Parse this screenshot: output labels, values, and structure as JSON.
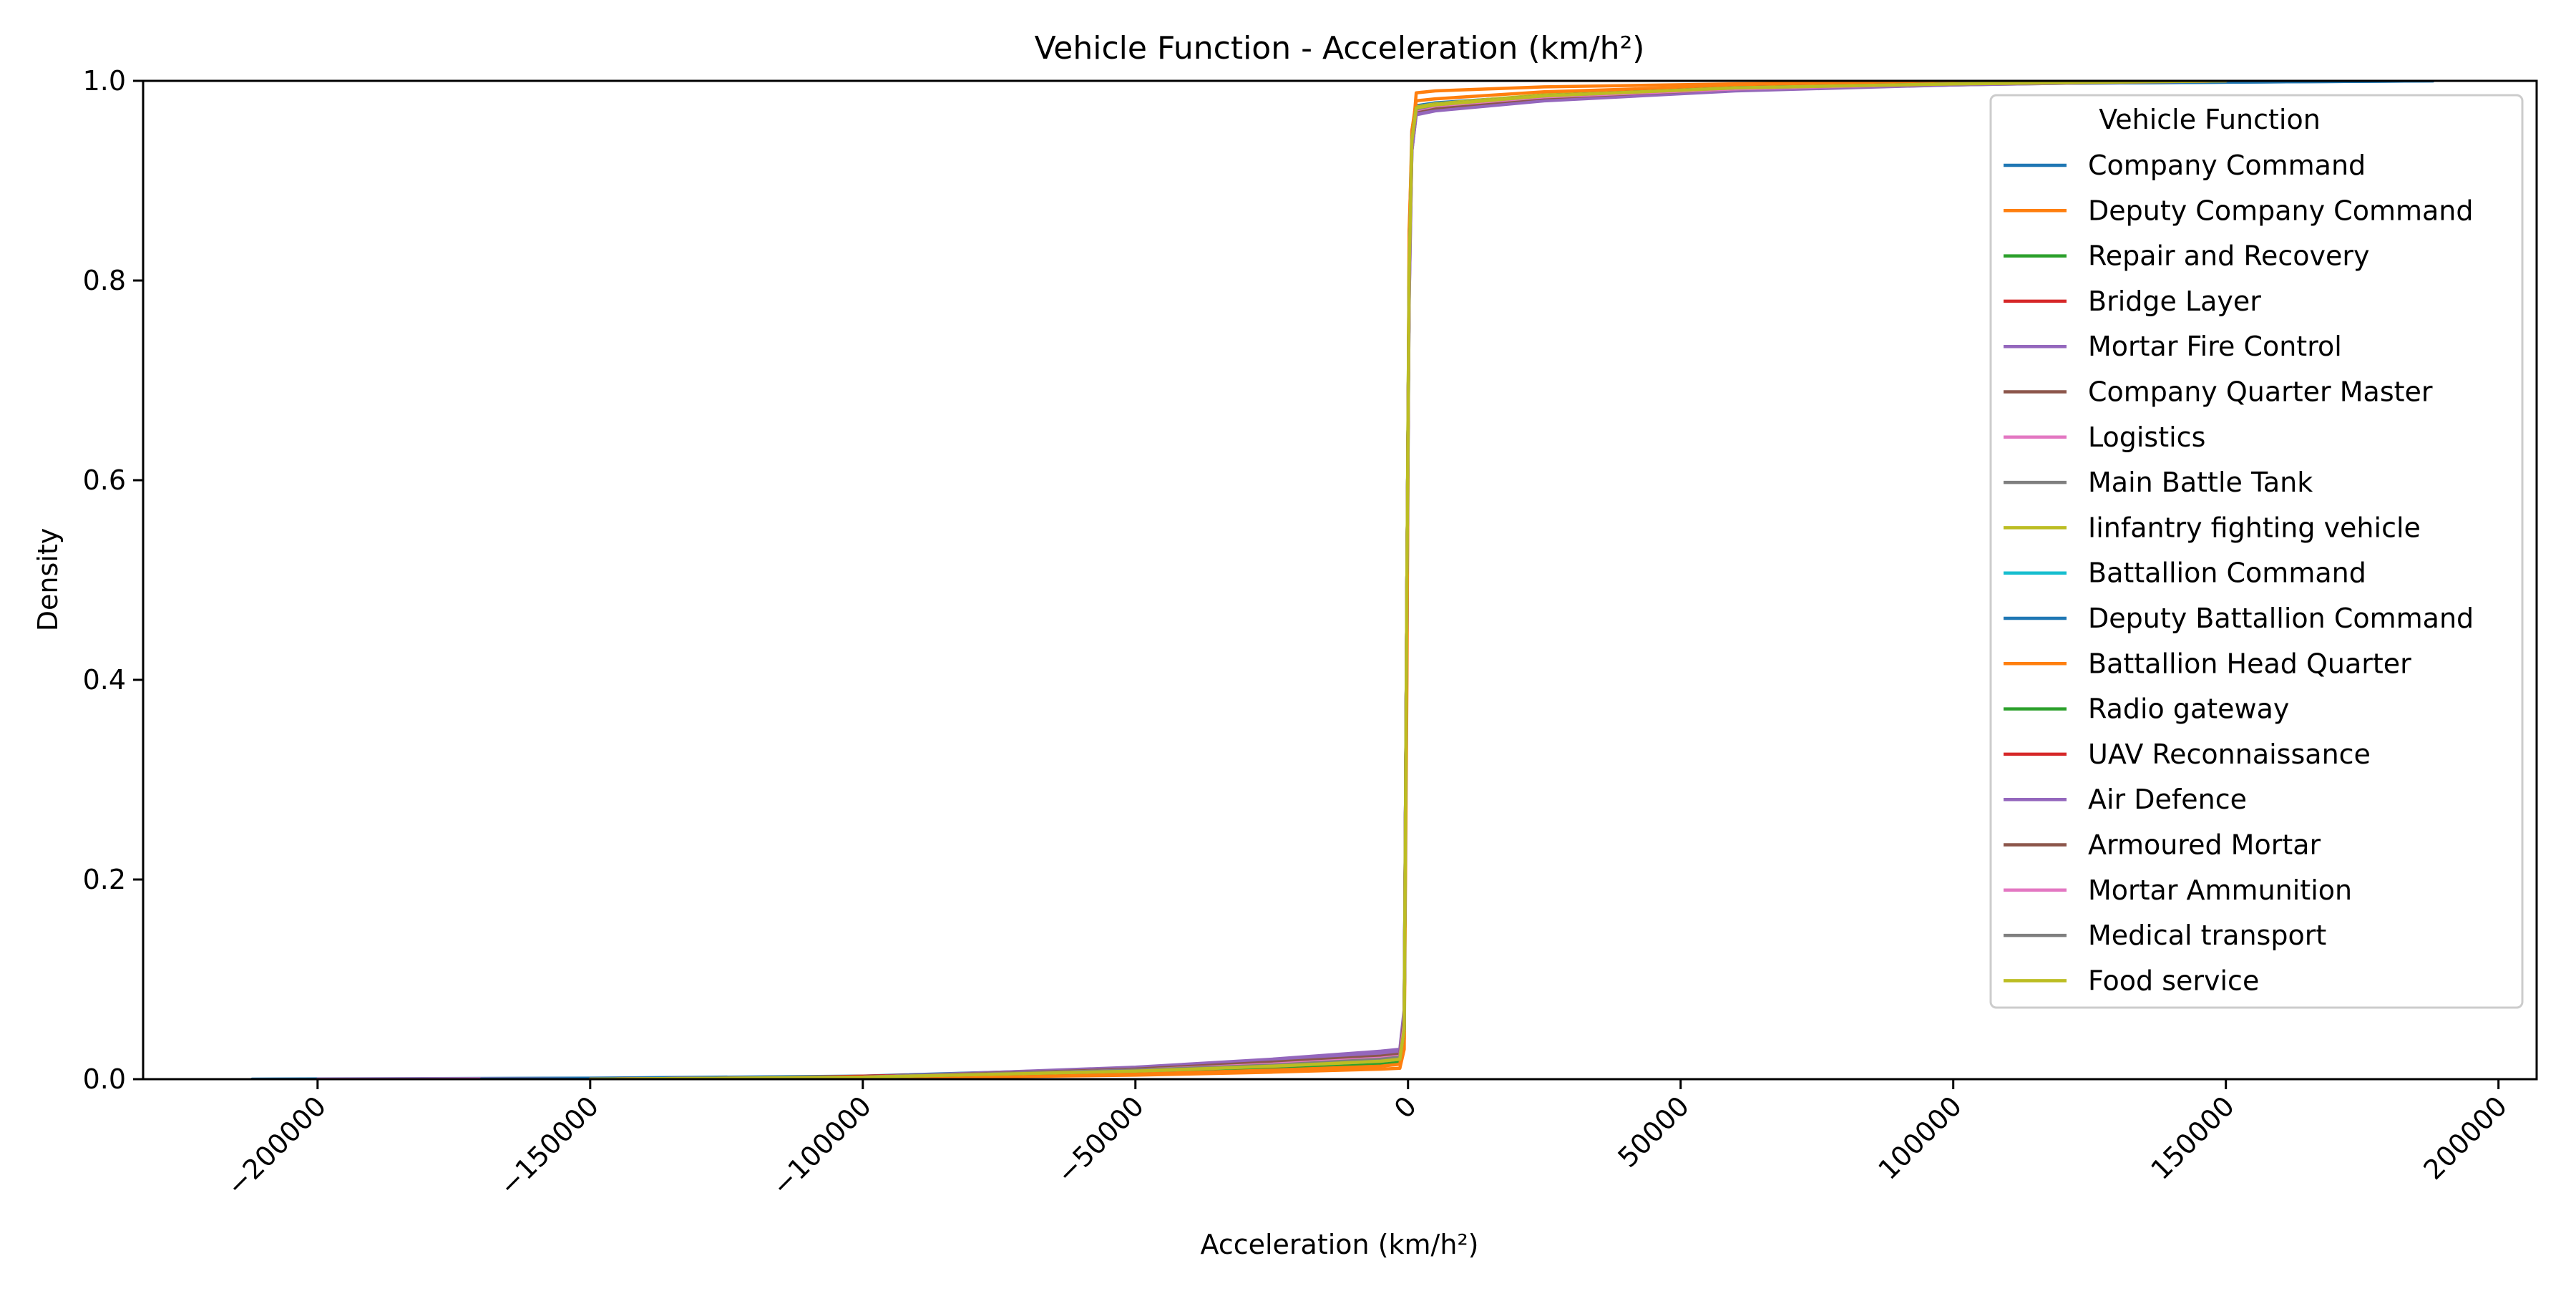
{
  "chart_data": {
    "type": "line",
    "title": "Vehicle Function - Acceleration (km/h²)",
    "xlabel": "Acceleration (km/h²)",
    "ylabel": "Density",
    "xlim": [
      -232000,
      207000
    ],
    "ylim": [
      0,
      1.0
    ],
    "x_ticks": [
      -200000,
      -150000,
      -100000,
      -50000,
      0,
      50000,
      100000,
      150000,
      200000
    ],
    "x_tick_labels": [
      "−200000",
      "−150000",
      "−100000",
      "−50000",
      "0",
      "50000",
      "100000",
      "150000",
      "200000"
    ],
    "y_ticks": [
      0.0,
      0.2,
      0.4,
      0.6,
      0.8,
      1.0
    ],
    "y_tick_labels": [
      "0.0",
      "0.2",
      "0.4",
      "0.6",
      "0.8",
      "1.0"
    ],
    "grid": false,
    "legend": {
      "title": "Vehicle Function",
      "position": "top-right"
    },
    "series": [
      {
        "name": "Company Command",
        "color": "#1f77b4",
        "x": [
          -212000,
          -150000,
          -100000,
          -50000,
          -25000,
          -5000,
          -1500,
          -700,
          -200,
          200,
          700,
          1500,
          5000,
          25000,
          60000,
          100000,
          188000
        ],
        "y": [
          0,
          0.001,
          0.003,
          0.011,
          0.017,
          0.024,
          0.026,
          0.06,
          0.45,
          0.8,
          0.95,
          0.975,
          0.978,
          0.985,
          0.992,
          0.997,
          1.0
        ]
      },
      {
        "name": "Deputy Company Command",
        "color": "#ff7f0e",
        "x": [
          -160000,
          -100000,
          -50000,
          -25000,
          -5000,
          -1500,
          -700,
          -200,
          200,
          700,
          1500,
          5000,
          25000,
          60000,
          100000,
          160000
        ],
        "y": [
          0,
          0.001,
          0.004,
          0.007,
          0.01,
          0.011,
          0.03,
          0.4,
          0.85,
          0.935,
          0.988,
          0.99,
          0.994,
          0.997,
          0.999,
          1.0
        ]
      },
      {
        "name": "Repair and Recovery",
        "color": "#2ca02c",
        "x": [
          -150000,
          -100000,
          -50000,
          -25000,
          -5000,
          -1500,
          -700,
          -200,
          200,
          700,
          1500,
          5000,
          25000,
          60000,
          100000,
          150000
        ],
        "y": [
          0,
          0.002,
          0.008,
          0.012,
          0.016,
          0.018,
          0.05,
          0.5,
          0.82,
          0.94,
          0.972,
          0.976,
          0.984,
          0.992,
          0.997,
          1.0
        ]
      },
      {
        "name": "Bridge Layer",
        "color": "#d62728",
        "x": [
          -180000,
          -120000,
          -60000,
          -25000,
          -5000,
          -1500,
          -700,
          -200,
          200,
          700,
          1500,
          5000,
          25000,
          60000,
          100000,
          150000
        ],
        "y": [
          0,
          0.001,
          0.007,
          0.013,
          0.018,
          0.02,
          0.05,
          0.5,
          0.8,
          0.94,
          0.972,
          0.975,
          0.985,
          0.993,
          0.997,
          1.0
        ]
      },
      {
        "name": "Mortar Fire Control",
        "color": "#9467bd",
        "x": [
          -140000,
          -100000,
          -50000,
          -25000,
          -5000,
          -1500,
          -700,
          -200,
          200,
          700,
          1500,
          5000,
          25000,
          60000,
          100000,
          140000
        ],
        "y": [
          0,
          0.002,
          0.012,
          0.02,
          0.028,
          0.03,
          0.07,
          0.5,
          0.78,
          0.93,
          0.966,
          0.97,
          0.98,
          0.99,
          0.996,
          1.0
        ]
      },
      {
        "name": "Company Quarter Master",
        "color": "#8c564b",
        "x": [
          -150000,
          -100000,
          -50000,
          -25000,
          -5000,
          -1500,
          -700,
          -200,
          200,
          700,
          1500,
          5000,
          25000,
          60000,
          100000,
          150000
        ],
        "y": [
          0,
          0.002,
          0.01,
          0.016,
          0.022,
          0.024,
          0.06,
          0.5,
          0.8,
          0.94,
          0.97,
          0.974,
          0.983,
          0.992,
          0.997,
          1.0
        ]
      },
      {
        "name": "Logistics",
        "color": "#e377c2",
        "x": [
          -200000,
          -150000,
          -100000,
          -50000,
          -25000,
          -5000,
          -1500,
          -700,
          -200,
          200,
          700,
          1500,
          5000,
          25000,
          60000,
          100000,
          150000
        ],
        "y": [
          0,
          0.0005,
          0.002,
          0.009,
          0.014,
          0.02,
          0.022,
          0.055,
          0.5,
          0.8,
          0.94,
          0.972,
          0.976,
          0.985,
          0.993,
          0.997,
          1.0
        ]
      },
      {
        "name": "Main Battle Tank",
        "color": "#7f7f7f",
        "x": [
          -150000,
          -100000,
          -50000,
          -25000,
          -5000,
          -1500,
          -700,
          -200,
          200,
          700,
          1500,
          5000,
          25000,
          60000,
          100000,
          150000
        ],
        "y": [
          0,
          0.002,
          0.011,
          0.018,
          0.025,
          0.027,
          0.06,
          0.5,
          0.8,
          0.93,
          0.968,
          0.972,
          0.982,
          0.991,
          0.996,
          1.0
        ]
      },
      {
        "name": "Iinfantry fighting vehicle",
        "color": "#bcbd22",
        "x": [
          -150000,
          -100000,
          -50000,
          -25000,
          -5000,
          -1500,
          -700,
          -200,
          200,
          700,
          1500,
          5000,
          25000,
          60000,
          100000,
          150000
        ],
        "y": [
          0,
          0.002,
          0.009,
          0.014,
          0.019,
          0.021,
          0.05,
          0.5,
          0.82,
          0.94,
          0.974,
          0.977,
          0.986,
          0.993,
          0.997,
          1.0
        ]
      },
      {
        "name": "Battallion Command",
        "color": "#17becf",
        "x": [
          -150000,
          -100000,
          -50000,
          -25000,
          -5000,
          -1500,
          -700,
          -200,
          200,
          700,
          1500,
          5000,
          25000,
          60000,
          100000,
          150000
        ],
        "y": [
          0,
          0.002,
          0.008,
          0.013,
          0.018,
          0.02,
          0.05,
          0.5,
          0.8,
          0.94,
          0.972,
          0.976,
          0.985,
          0.993,
          0.997,
          1.0
        ]
      },
      {
        "name": "Deputy Battallion Command",
        "color": "#1f77b4",
        "x": [
          -170000,
          -100000,
          -50000,
          -25000,
          -5000,
          -1500,
          -700,
          -200,
          200,
          700,
          1500,
          5000,
          25000,
          60000,
          100000,
          188000
        ],
        "y": [
          0,
          0.002,
          0.01,
          0.016,
          0.022,
          0.024,
          0.06,
          0.5,
          0.8,
          0.94,
          0.97,
          0.974,
          0.984,
          0.992,
          0.997,
          1.0
        ]
      },
      {
        "name": "Battallion Head Quarter",
        "color": "#ff7f0e",
        "x": [
          -150000,
          -100000,
          -50000,
          -25000,
          -5000,
          -1500,
          -700,
          -200,
          200,
          700,
          1500,
          5000,
          25000,
          60000,
          100000,
          150000
        ],
        "y": [
          0,
          0.001,
          0.005,
          0.009,
          0.013,
          0.015,
          0.04,
          0.45,
          0.84,
          0.95,
          0.98,
          0.982,
          0.989,
          0.995,
          0.998,
          1.0
        ]
      },
      {
        "name": "Radio gateway",
        "color": "#2ca02c",
        "x": [
          -150000,
          -100000,
          -50000,
          -25000,
          -5000,
          -1500,
          -700,
          -200,
          200,
          700,
          1500,
          5000,
          25000,
          60000,
          100000,
          150000
        ],
        "y": [
          0,
          0.002,
          0.009,
          0.015,
          0.02,
          0.022,
          0.05,
          0.5,
          0.8,
          0.94,
          0.973,
          0.976,
          0.985,
          0.993,
          0.997,
          1.0
        ]
      },
      {
        "name": "UAV Reconnaissance",
        "color": "#d62728",
        "x": [
          -150000,
          -100000,
          -50000,
          -25000,
          -5000,
          -1500,
          -700,
          -200,
          200,
          700,
          1500,
          5000,
          25000,
          60000,
          100000,
          150000
        ],
        "y": [
          0,
          0.002,
          0.008,
          0.014,
          0.019,
          0.021,
          0.05,
          0.5,
          0.8,
          0.94,
          0.972,
          0.975,
          0.985,
          0.993,
          0.997,
          1.0
        ]
      },
      {
        "name": "Air Defence",
        "color": "#9467bd",
        "x": [
          -150000,
          -100000,
          -50000,
          -25000,
          -5000,
          -1500,
          -700,
          -200,
          200,
          700,
          1500,
          5000,
          25000,
          60000,
          100000,
          150000
        ],
        "y": [
          0,
          0.002,
          0.011,
          0.019,
          0.026,
          0.028,
          0.06,
          0.5,
          0.78,
          0.93,
          0.967,
          0.971,
          0.981,
          0.991,
          0.996,
          1.0
        ]
      },
      {
        "name": "Armoured Mortar",
        "color": "#8c564b",
        "x": [
          -150000,
          -100000,
          -50000,
          -25000,
          -5000,
          -1500,
          -700,
          -200,
          200,
          700,
          1500,
          5000,
          25000,
          60000,
          100000,
          150000
        ],
        "y": [
          0,
          0.002,
          0.01,
          0.017,
          0.023,
          0.025,
          0.06,
          0.5,
          0.8,
          0.94,
          0.97,
          0.973,
          0.983,
          0.992,
          0.997,
          1.0
        ]
      },
      {
        "name": "Mortar Ammunition",
        "color": "#e377c2",
        "x": [
          -150000,
          -100000,
          -50000,
          -25000,
          -5000,
          -1500,
          -700,
          -200,
          200,
          700,
          1500,
          5000,
          25000,
          60000,
          100000,
          150000
        ],
        "y": [
          0,
          0.002,
          0.009,
          0.015,
          0.021,
          0.023,
          0.055,
          0.5,
          0.8,
          0.94,
          0.971,
          0.975,
          0.984,
          0.992,
          0.997,
          1.0
        ]
      },
      {
        "name": "Medical transport",
        "color": "#7f7f7f",
        "x": [
          -150000,
          -100000,
          -50000,
          -25000,
          -5000,
          -1500,
          -700,
          -200,
          200,
          700,
          1500,
          5000,
          25000,
          60000,
          100000,
          150000
        ],
        "y": [
          0,
          0.002,
          0.009,
          0.014,
          0.02,
          0.022,
          0.05,
          0.5,
          0.8,
          0.94,
          0.972,
          0.976,
          0.985,
          0.993,
          0.997,
          1.0
        ]
      },
      {
        "name": "Food service",
        "color": "#bcbd22",
        "x": [
          -150000,
          -100000,
          -50000,
          -25000,
          -5000,
          -1500,
          -700,
          -200,
          200,
          700,
          1500,
          5000,
          25000,
          60000,
          100000,
          150000
        ],
        "y": [
          0,
          0.002,
          0.008,
          0.013,
          0.018,
          0.02,
          0.05,
          0.5,
          0.81,
          0.94,
          0.973,
          0.976,
          0.985,
          0.993,
          0.997,
          1.0
        ]
      }
    ]
  }
}
